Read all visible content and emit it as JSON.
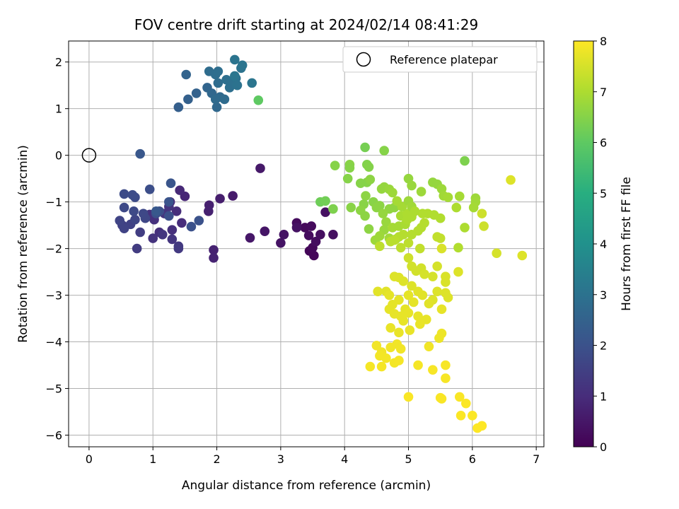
{
  "chart_data": {
    "type": "scatter",
    "title": "FOV centre drift starting at 2024/02/14 08:41:29",
    "xlabel": "Angular distance from reference (arcmin)",
    "ylabel": "Rotation from reference (arcmin)",
    "xlim": [
      -0.32,
      7.12
    ],
    "ylim": [
      -6.25,
      2.45
    ],
    "xticks": [
      "0",
      "1",
      "2",
      "3",
      "4",
      "5",
      "6",
      "7"
    ],
    "yticks": [
      "2",
      "1",
      "0",
      "−1",
      "−2",
      "−3",
      "−4",
      "−5",
      "−6"
    ],
    "grid": true,
    "legend": {
      "label": "Reference platepar",
      "placement": "top-right"
    },
    "reference_point": {
      "x": 0,
      "y": 0
    },
    "colorbar": {
      "label": "Hours from first FF file",
      "range": [
        0,
        8
      ],
      "ticks": [
        "0",
        "1",
        "2",
        "3",
        "4",
        "5",
        "6",
        "7",
        "8"
      ],
      "colormap": "viridis"
    },
    "points": [
      {
        "x": 3.45,
        "y": -2.05,
        "hours": 0.1
      },
      {
        "x": 3.52,
        "y": -2.15,
        "hours": 0.12
      },
      {
        "x": 3.5,
        "y": -1.98,
        "hours": 0.15
      },
      {
        "x": 3.38,
        "y": -1.55,
        "hours": 0.18
      },
      {
        "x": 3.48,
        "y": -1.52,
        "hours": 0.2
      },
      {
        "x": 3.25,
        "y": -1.45,
        "hours": 0.22
      },
      {
        "x": 3.44,
        "y": -1.72,
        "hours": 0.25
      },
      {
        "x": 3.55,
        "y": -1.85,
        "hours": 0.28
      },
      {
        "x": 3.62,
        "y": -1.7,
        "hours": 0.3
      },
      {
        "x": 3.82,
        "y": -1.7,
        "hours": 0.32
      },
      {
        "x": 3.7,
        "y": -1.22,
        "hours": 0.35
      },
      {
        "x": 3.25,
        "y": -1.55,
        "hours": 0.38
      },
      {
        "x": 3.05,
        "y": -1.7,
        "hours": 0.4
      },
      {
        "x": 3.0,
        "y": -1.88,
        "hours": 0.42
      },
      {
        "x": 2.75,
        "y": -1.63,
        "hours": 0.45
      },
      {
        "x": 2.52,
        "y": -1.77,
        "hours": 0.5
      },
      {
        "x": 2.68,
        "y": -0.28,
        "hours": 0.55
      },
      {
        "x": 2.25,
        "y": -0.87,
        "hours": 0.6
      },
      {
        "x": 2.05,
        "y": -0.93,
        "hours": 0.65
      },
      {
        "x": 1.88,
        "y": -1.07,
        "hours": 0.7
      },
      {
        "x": 1.87,
        "y": -1.2,
        "hours": 0.72
      },
      {
        "x": 1.95,
        "y": -2.03,
        "hours": 0.75
      },
      {
        "x": 1.95,
        "y": -2.2,
        "hours": 0.78
      },
      {
        "x": 1.5,
        "y": -0.88,
        "hours": 0.85
      },
      {
        "x": 1.42,
        "y": -0.75,
        "hours": 0.9
      },
      {
        "x": 1.27,
        "y": -1.0,
        "hours": 0.95
      },
      {
        "x": 1.45,
        "y": -1.45,
        "hours": 1.0
      },
      {
        "x": 1.37,
        "y": -1.2,
        "hours": 1.02
      },
      {
        "x": 1.1,
        "y": -1.65,
        "hours": 1.05
      },
      {
        "x": 1.3,
        "y": -1.6,
        "hours": 1.08
      },
      {
        "x": 1.02,
        "y": -1.38,
        "hours": 1.1
      },
      {
        "x": 0.95,
        "y": -1.27,
        "hours": 1.12
      },
      {
        "x": 1.0,
        "y": -1.78,
        "hours": 1.15
      },
      {
        "x": 1.18,
        "y": -1.25,
        "hours": 1.18
      },
      {
        "x": 1.25,
        "y": -1.1,
        "hours": 1.2
      },
      {
        "x": 1.3,
        "y": -1.8,
        "hours": 1.22
      },
      {
        "x": 1.15,
        "y": -1.7,
        "hours": 1.25
      },
      {
        "x": 1.4,
        "y": -1.95,
        "hours": 1.3
      },
      {
        "x": 1.4,
        "y": -2.0,
        "hours": 1.35
      },
      {
        "x": 0.75,
        "y": -2.0,
        "hours": 1.4
      },
      {
        "x": 0.8,
        "y": -1.65,
        "hours": 1.45
      },
      {
        "x": 0.52,
        "y": -1.5,
        "hours": 1.5
      },
      {
        "x": 0.65,
        "y": -1.48,
        "hours": 1.55
      },
      {
        "x": 0.55,
        "y": -1.57,
        "hours": 1.6
      },
      {
        "x": 0.48,
        "y": -1.4,
        "hours": 1.62
      },
      {
        "x": 0.72,
        "y": -1.38,
        "hours": 1.65
      },
      {
        "x": 0.88,
        "y": -1.35,
        "hours": 1.7
      },
      {
        "x": 0.85,
        "y": -1.25,
        "hours": 1.72
      },
      {
        "x": 0.55,
        "y": -1.12,
        "hours": 1.75
      },
      {
        "x": 0.7,
        "y": -1.2,
        "hours": 1.78
      },
      {
        "x": 0.72,
        "y": -0.9,
        "hours": 1.8
      },
      {
        "x": 0.55,
        "y": -0.83,
        "hours": 1.82
      },
      {
        "x": 0.68,
        "y": -0.85,
        "hours": 1.85
      },
      {
        "x": 0.95,
        "y": -0.73,
        "hours": 1.88
      },
      {
        "x": 1.1,
        "y": -1.2,
        "hours": 1.9
      },
      {
        "x": 1.05,
        "y": -1.25,
        "hours": 1.92
      },
      {
        "x": 1.25,
        "y": -1.3,
        "hours": 1.95
      },
      {
        "x": 1.6,
        "y": -1.53,
        "hours": 1.98
      },
      {
        "x": 1.72,
        "y": -1.4,
        "hours": 2.0
      },
      {
        "x": 1.25,
        "y": -1.0,
        "hours": 2.05
      },
      {
        "x": 1.28,
        "y": -0.6,
        "hours": 2.1
      },
      {
        "x": 0.8,
        "y": 0.03,
        "hours": 2.15
      },
      {
        "x": 1.05,
        "y": -1.2,
        "hours": 2.2
      },
      {
        "x": 1.4,
        "y": 1.03,
        "hours": 2.4
      },
      {
        "x": 1.55,
        "y": 1.2,
        "hours": 2.45
      },
      {
        "x": 1.68,
        "y": 1.33,
        "hours": 2.5
      },
      {
        "x": 1.52,
        "y": 1.73,
        "hours": 2.55
      },
      {
        "x": 1.85,
        "y": 1.45,
        "hours": 2.6
      },
      {
        "x": 1.92,
        "y": 1.33,
        "hours": 2.65
      },
      {
        "x": 2.0,
        "y": 1.03,
        "hours": 2.7
      },
      {
        "x": 2.05,
        "y": 1.25,
        "hours": 2.72
      },
      {
        "x": 1.98,
        "y": 1.2,
        "hours": 2.75
      },
      {
        "x": 2.12,
        "y": 1.2,
        "hours": 2.78
      },
      {
        "x": 2.02,
        "y": 1.55,
        "hours": 2.8
      },
      {
        "x": 1.88,
        "y": 1.8,
        "hours": 2.82
      },
      {
        "x": 1.98,
        "y": 1.73,
        "hours": 2.85
      },
      {
        "x": 2.02,
        "y": 1.8,
        "hours": 2.88
      },
      {
        "x": 2.15,
        "y": 1.62,
        "hours": 2.9
      },
      {
        "x": 2.2,
        "y": 1.45,
        "hours": 2.92
      },
      {
        "x": 2.25,
        "y": 1.6,
        "hours": 2.95
      },
      {
        "x": 2.3,
        "y": 1.65,
        "hours": 2.98
      },
      {
        "x": 2.32,
        "y": 1.5,
        "hours": 3.0
      },
      {
        "x": 2.38,
        "y": 1.87,
        "hours": 3.02
      },
      {
        "x": 2.28,
        "y": 2.05,
        "hours": 3.05
      },
      {
        "x": 2.4,
        "y": 1.93,
        "hours": 3.08
      },
      {
        "x": 2.55,
        "y": 1.55,
        "hours": 3.1
      },
      {
        "x": 2.28,
        "y": 1.7,
        "hours": 3.12
      },
      {
        "x": 2.65,
        "y": 1.18,
        "hours": 6.0
      },
      {
        "x": 4.32,
        "y": 0.17,
        "hours": 6.3
      },
      {
        "x": 4.62,
        "y": 0.1,
        "hours": 6.5
      },
      {
        "x": 5.88,
        "y": -0.12,
        "hours": 6.4
      },
      {
        "x": 3.85,
        "y": -0.22,
        "hours": 6.5
      },
      {
        "x": 4.08,
        "y": -0.2,
        "hours": 6.55
      },
      {
        "x": 4.08,
        "y": -0.27,
        "hours": 6.5
      },
      {
        "x": 4.35,
        "y": -0.2,
        "hours": 6.45
      },
      {
        "x": 4.38,
        "y": -0.25,
        "hours": 6.48
      },
      {
        "x": 4.05,
        "y": -0.5,
        "hours": 6.5
      },
      {
        "x": 4.25,
        "y": -0.6,
        "hours": 6.5
      },
      {
        "x": 4.35,
        "y": -0.58,
        "hours": 6.5
      },
      {
        "x": 4.4,
        "y": -0.52,
        "hours": 6.6
      },
      {
        "x": 4.58,
        "y": -0.72,
        "hours": 6.7
      },
      {
        "x": 4.62,
        "y": -0.68,
        "hours": 6.7
      },
      {
        "x": 4.7,
        "y": -0.73,
        "hours": 6.75
      },
      {
        "x": 4.75,
        "y": -0.8,
        "hours": 6.8
      },
      {
        "x": 4.33,
        "y": -0.87,
        "hours": 6.6
      },
      {
        "x": 4.45,
        "y": -1.0,
        "hours": 6.55
      },
      {
        "x": 4.3,
        "y": -1.05,
        "hours": 6.55
      },
      {
        "x": 4.5,
        "y": -1.12,
        "hours": 6.6
      },
      {
        "x": 4.55,
        "y": -1.08,
        "hours": 6.6
      },
      {
        "x": 4.7,
        "y": -1.15,
        "hours": 6.65
      },
      {
        "x": 4.78,
        "y": -1.12,
        "hours": 6.65
      },
      {
        "x": 4.6,
        "y": -1.25,
        "hours": 6.7
      },
      {
        "x": 4.32,
        "y": -1.3,
        "hours": 6.6
      },
      {
        "x": 4.25,
        "y": -1.18,
        "hours": 6.6
      },
      {
        "x": 4.1,
        "y": -1.12,
        "hours": 6.55
      },
      {
        "x": 3.62,
        "y": -1.0,
        "hours": 6.2
      },
      {
        "x": 3.7,
        "y": -0.98,
        "hours": 6.25
      },
      {
        "x": 3.82,
        "y": -1.15,
        "hours": 6.4
      },
      {
        "x": 4.65,
        "y": -1.43,
        "hours": 6.75
      },
      {
        "x": 4.62,
        "y": -1.6,
        "hours": 6.75
      },
      {
        "x": 4.48,
        "y": -1.82,
        "hours": 6.8
      },
      {
        "x": 4.38,
        "y": -1.58,
        "hours": 6.6
      },
      {
        "x": 4.55,
        "y": -1.73,
        "hours": 6.8
      },
      {
        "x": 4.7,
        "y": -1.78,
        "hours": 6.85
      },
      {
        "x": 4.8,
        "y": -1.8,
        "hours": 6.85
      },
      {
        "x": 4.75,
        "y": -1.55,
        "hours": 6.9
      },
      {
        "x": 4.85,
        "y": -1.52,
        "hours": 6.9
      },
      {
        "x": 4.95,
        "y": -1.48,
        "hours": 6.95
      },
      {
        "x": 4.88,
        "y": -1.3,
        "hours": 6.95
      },
      {
        "x": 4.98,
        "y": -1.38,
        "hours": 7.0
      },
      {
        "x": 5.05,
        "y": -1.32,
        "hours": 7.0
      },
      {
        "x": 4.98,
        "y": -1.25,
        "hours": 7.0
      },
      {
        "x": 4.9,
        "y": -1.1,
        "hours": 6.9
      },
      {
        "x": 4.82,
        "y": -0.98,
        "hours": 6.9
      },
      {
        "x": 5.0,
        "y": -0.5,
        "hours": 6.7
      },
      {
        "x": 5.05,
        "y": -0.65,
        "hours": 6.75
      },
      {
        "x": 5.0,
        "y": -0.98,
        "hours": 6.8
      },
      {
        "x": 5.05,
        "y": -1.1,
        "hours": 6.85
      },
      {
        "x": 5.2,
        "y": -0.78,
        "hours": 6.8
      },
      {
        "x": 5.38,
        "y": -0.58,
        "hours": 6.7
      },
      {
        "x": 5.45,
        "y": -0.62,
        "hours": 6.7
      },
      {
        "x": 5.52,
        "y": -0.72,
        "hours": 6.8
      },
      {
        "x": 5.55,
        "y": -0.87,
        "hours": 6.85
      },
      {
        "x": 5.62,
        "y": -0.9,
        "hours": 6.9
      },
      {
        "x": 5.8,
        "y": -0.88,
        "hours": 6.9
      },
      {
        "x": 5.75,
        "y": -1.12,
        "hours": 7.0
      },
      {
        "x": 6.05,
        "y": -0.92,
        "hours": 6.8
      },
      {
        "x": 6.05,
        "y": -1.0,
        "hours": 6.85
      },
      {
        "x": 6.02,
        "y": -1.12,
        "hours": 6.9
      },
      {
        "x": 5.88,
        "y": -1.55,
        "hours": 7.0
      },
      {
        "x": 5.78,
        "y": -1.98,
        "hours": 7.05
      },
      {
        "x": 5.5,
        "y": -1.35,
        "hours": 7.05
      },
      {
        "x": 5.4,
        "y": -1.28,
        "hours": 7.05
      },
      {
        "x": 5.3,
        "y": -1.25,
        "hours": 7.05
      },
      {
        "x": 5.22,
        "y": -1.25,
        "hours": 7.05
      },
      {
        "x": 5.1,
        "y": -1.2,
        "hours": 7.0
      },
      {
        "x": 5.25,
        "y": -1.45,
        "hours": 7.1
      },
      {
        "x": 5.2,
        "y": -1.55,
        "hours": 7.1
      },
      {
        "x": 5.15,
        "y": -1.62,
        "hours": 7.1
      },
      {
        "x": 5.05,
        "y": -1.7,
        "hours": 7.1
      },
      {
        "x": 4.92,
        "y": -1.7,
        "hours": 7.1
      },
      {
        "x": 4.85,
        "y": -1.75,
        "hours": 7.1
      },
      {
        "x": 4.78,
        "y": -1.82,
        "hours": 7.15
      },
      {
        "x": 4.72,
        "y": -1.85,
        "hours": 7.15
      },
      {
        "x": 4.55,
        "y": -1.95,
        "hours": 7.2
      },
      {
        "x": 4.88,
        "y": -1.98,
        "hours": 7.2
      },
      {
        "x": 5.0,
        "y": -1.88,
        "hours": 7.2
      },
      {
        "x": 5.18,
        "y": -2.0,
        "hours": 7.25
      },
      {
        "x": 5.45,
        "y": -1.75,
        "hours": 7.25
      },
      {
        "x": 5.5,
        "y": -1.78,
        "hours": 7.25
      },
      {
        "x": 6.15,
        "y": -1.25,
        "hours": 7.4
      },
      {
        "x": 6.18,
        "y": -1.52,
        "hours": 7.4
      },
      {
        "x": 6.38,
        "y": -2.1,
        "hours": 7.5
      },
      {
        "x": 6.6,
        "y": -0.53,
        "hours": 7.6
      },
      {
        "x": 6.78,
        "y": -2.15,
        "hours": 7.6
      },
      {
        "x": 5.0,
        "y": -2.2,
        "hours": 7.4
      },
      {
        "x": 5.05,
        "y": -2.38,
        "hours": 7.45
      },
      {
        "x": 5.12,
        "y": -2.48,
        "hours": 7.45
      },
      {
        "x": 5.2,
        "y": -2.42,
        "hours": 7.45
      },
      {
        "x": 5.25,
        "y": -2.55,
        "hours": 7.5
      },
      {
        "x": 5.38,
        "y": -2.6,
        "hours": 7.5
      },
      {
        "x": 5.45,
        "y": -2.38,
        "hours": 7.5
      },
      {
        "x": 5.52,
        "y": -2.0,
        "hours": 7.55
      },
      {
        "x": 5.58,
        "y": -2.6,
        "hours": 7.55
      },
      {
        "x": 5.58,
        "y": -2.72,
        "hours": 7.55
      },
      {
        "x": 5.78,
        "y": -2.5,
        "hours": 7.6
      },
      {
        "x": 5.45,
        "y": -2.92,
        "hours": 7.6
      },
      {
        "x": 5.58,
        "y": -2.95,
        "hours": 7.6
      },
      {
        "x": 5.62,
        "y": -3.05,
        "hours": 7.6
      },
      {
        "x": 5.38,
        "y": -3.1,
        "hours": 7.6
      },
      {
        "x": 5.32,
        "y": -3.18,
        "hours": 7.65
      },
      {
        "x": 5.22,
        "y": -3.0,
        "hours": 7.65
      },
      {
        "x": 5.15,
        "y": -2.92,
        "hours": 7.65
      },
      {
        "x": 5.05,
        "y": -2.8,
        "hours": 7.6
      },
      {
        "x": 4.92,
        "y": -2.7,
        "hours": 7.6
      },
      {
        "x": 4.85,
        "y": -2.62,
        "hours": 7.6
      },
      {
        "x": 4.78,
        "y": -2.6,
        "hours": 7.6
      },
      {
        "x": 4.65,
        "y": -2.92,
        "hours": 7.65
      },
      {
        "x": 4.52,
        "y": -2.92,
        "hours": 7.65
      },
      {
        "x": 4.7,
        "y": -3.0,
        "hours": 7.7
      },
      {
        "x": 4.75,
        "y": -3.2,
        "hours": 7.7
      },
      {
        "x": 4.85,
        "y": -3.1,
        "hours": 7.7
      },
      {
        "x": 4.95,
        "y": -3.3,
        "hours": 7.7
      },
      {
        "x": 5.0,
        "y": -3.0,
        "hours": 7.7
      },
      {
        "x": 5.08,
        "y": -3.15,
        "hours": 7.7
      },
      {
        "x": 4.7,
        "y": -3.3,
        "hours": 7.7
      },
      {
        "x": 4.78,
        "y": -3.4,
        "hours": 7.72
      },
      {
        "x": 4.88,
        "y": -3.45,
        "hours": 7.72
      },
      {
        "x": 4.92,
        "y": -3.55,
        "hours": 7.72
      },
      {
        "x": 5.0,
        "y": -3.38,
        "hours": 7.72
      },
      {
        "x": 5.15,
        "y": -3.45,
        "hours": 7.72
      },
      {
        "x": 5.28,
        "y": -3.52,
        "hours": 7.72
      },
      {
        "x": 5.52,
        "y": -3.3,
        "hours": 7.72
      },
      {
        "x": 4.72,
        "y": -3.7,
        "hours": 7.75
      },
      {
        "x": 4.85,
        "y": -3.8,
        "hours": 7.75
      },
      {
        "x": 5.02,
        "y": -3.75,
        "hours": 7.75
      },
      {
        "x": 5.18,
        "y": -3.62,
        "hours": 7.75
      },
      {
        "x": 5.48,
        "y": -3.92,
        "hours": 7.8
      },
      {
        "x": 5.52,
        "y": -3.82,
        "hours": 7.8
      },
      {
        "x": 5.32,
        "y": -4.1,
        "hours": 7.85
      },
      {
        "x": 4.5,
        "y": -4.08,
        "hours": 7.85
      },
      {
        "x": 4.58,
        "y": -4.22,
        "hours": 7.85
      },
      {
        "x": 4.72,
        "y": -4.12,
        "hours": 7.85
      },
      {
        "x": 4.82,
        "y": -4.05,
        "hours": 7.85
      },
      {
        "x": 4.88,
        "y": -4.15,
        "hours": 7.85
      },
      {
        "x": 4.55,
        "y": -4.3,
        "hours": 7.88
      },
      {
        "x": 4.65,
        "y": -4.35,
        "hours": 7.88
      },
      {
        "x": 4.78,
        "y": -4.45,
        "hours": 7.88
      },
      {
        "x": 4.85,
        "y": -4.4,
        "hours": 7.9
      },
      {
        "x": 4.58,
        "y": -4.53,
        "hours": 7.9
      },
      {
        "x": 4.4,
        "y": -4.53,
        "hours": 7.9
      },
      {
        "x": 5.15,
        "y": -4.5,
        "hours": 7.9
      },
      {
        "x": 5.38,
        "y": -4.6,
        "hours": 7.92
      },
      {
        "x": 5.58,
        "y": -4.5,
        "hours": 7.92
      },
      {
        "x": 5.58,
        "y": -4.78,
        "hours": 7.92
      },
      {
        "x": 5.0,
        "y": -5.18,
        "hours": 7.95
      },
      {
        "x": 5.5,
        "y": -5.2,
        "hours": 7.95
      },
      {
        "x": 5.52,
        "y": -5.22,
        "hours": 7.95
      },
      {
        "x": 5.8,
        "y": -5.18,
        "hours": 7.95
      },
      {
        "x": 5.9,
        "y": -5.32,
        "hours": 7.97
      },
      {
        "x": 5.82,
        "y": -5.58,
        "hours": 7.97
      },
      {
        "x": 6.0,
        "y": -5.58,
        "hours": 7.98
      },
      {
        "x": 6.08,
        "y": -5.85,
        "hours": 8.0
      },
      {
        "x": 6.15,
        "y": -5.8,
        "hours": 8.0
      }
    ]
  }
}
